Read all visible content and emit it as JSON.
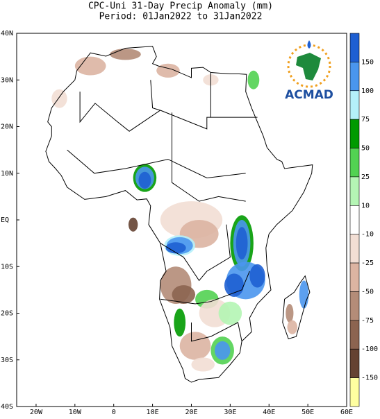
{
  "title": "CPC-Uni 31-Day Precip Anomaly (mm)",
  "subtitle": "Period: 01Jan2022 to 31Jan2022",
  "map": {
    "xlim": [
      -25,
      60
    ],
    "ylim": [
      -40,
      40
    ],
    "xticks": [
      {
        "value": -20,
        "label": "20W"
      },
      {
        "value": -10,
        "label": "10W"
      },
      0,
      {
        "value": 10,
        "label": "10E"
      },
      {
        "value": 20,
        "label": "20E"
      },
      {
        "value": 30,
        "label": "30E"
      },
      {
        "value": 40,
        "label": "40E"
      },
      {
        "value": 50,
        "label": "50E"
      },
      {
        "value": 60,
        "label": "60E"
      }
    ],
    "yticks": [
      {
        "value": 40,
        "label": "40N"
      },
      {
        "value": 30,
        "label": "30N"
      },
      {
        "value": 20,
        "label": "20N"
      },
      {
        "value": 10,
        "label": "10N"
      },
      {
        "value": 0,
        "label": "EQ"
      },
      {
        "value": -10,
        "label": "10S"
      },
      {
        "value": -20,
        "label": "20S"
      },
      {
        "value": -30,
        "label": "30S"
      },
      {
        "value": -40,
        "label": "40S"
      }
    ]
  },
  "colorbar": {
    "levels": [
      150,
      100,
      75,
      50,
      25,
      10,
      -10,
      -25,
      -50,
      -75,
      -100,
      -150
    ],
    "colors": [
      "#1e5fd2",
      "#4a96ee",
      "#b4f0fa",
      "#009a00",
      "#52d252",
      "#b4f5b4",
      "#ffffff",
      "#f2ded4",
      "#dcb4a2",
      "#b48c78",
      "#8c6450",
      "#654232",
      "#ffffa0"
    ]
  },
  "logo": {
    "text": "ACMAD"
  }
}
